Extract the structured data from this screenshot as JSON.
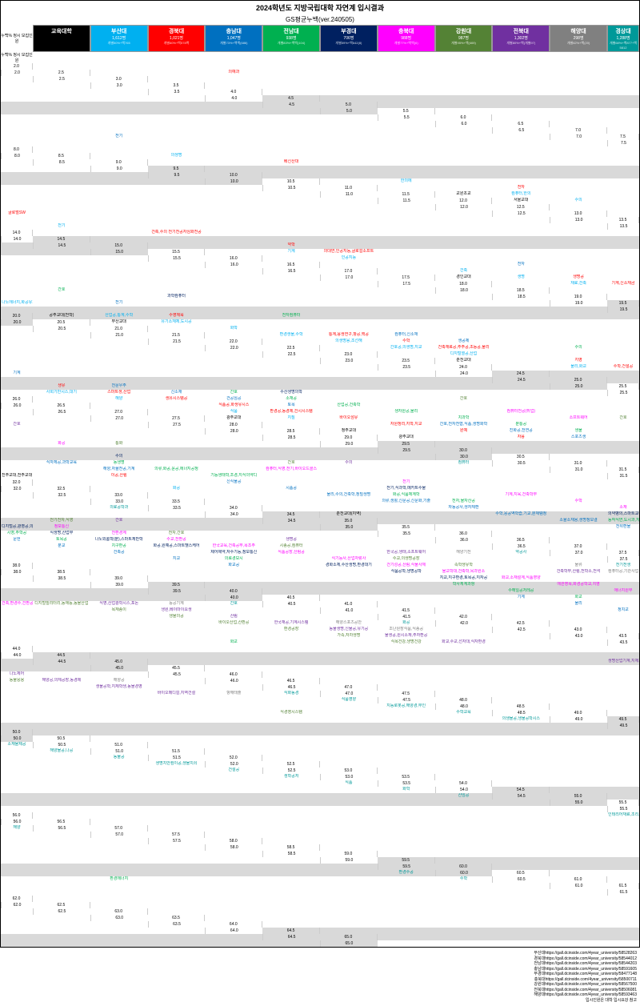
{
  "title": "2024학년도 지방국립대학 자연계 입시결과",
  "subtitle": "GS평균누백(ver.240505)",
  "corner_left": "누백%\n정시\n모집인원",
  "corner_right": "누백%\n정시\n모집인원",
  "columns": [
    {
      "name": "교육대학",
      "count": "",
      "bg": "#000000"
    },
    {
      "name": "부산대",
      "count": "1,612명",
      "link": "개별50%+백765",
      "bg": "#00b0f0"
    },
    {
      "name": "경북대",
      "count": "1,021명",
      "link": "개별60%+백578백",
      "bg": "#ff0000"
    },
    {
      "name": "충남대",
      "count": "1,047명",
      "link": "개별73%+백백(686)",
      "bg": "#0070c0"
    },
    {
      "name": "전남대",
      "count": "938명",
      "link": "개별83%+백백(104)",
      "bg": "#00b050"
    },
    {
      "name": "부경대",
      "count": "706명",
      "link": "개별59%+백642(8)",
      "bg": "#002060"
    },
    {
      "name": "충북대",
      "count": "988명",
      "link": "개별77%+백백(6)",
      "bg": "#ff00ff"
    },
    {
      "name": "강원대",
      "count": "987명",
      "link": "개별95%+백(469)",
      "bg": "#548235"
    },
    {
      "name": "전북대",
      "count": "1,302명",
      "link": "개별80%+백(개별97)",
      "bg": "#7030a0"
    },
    {
      "name": "해양대",
      "count": "298명",
      "link": "개별62%+백(20)",
      "bg": "#808080"
    },
    {
      "name": "경상대",
      "count": "1,288명",
      "link": "개별68%+백877+백5812",
      "bg": "#009999"
    }
  ],
  "row_vals": [
    "2.0",
    "2.5",
    "3.0",
    "3.5",
    "4.0",
    "4.5",
    "5.0",
    "5.5",
    "6.0",
    "6.5",
    "7.0",
    "7.5",
    "8.0",
    "8.5",
    "9.0",
    "9.5",
    "10.0",
    "10.5",
    "11.0",
    "11.5",
    "12.0",
    "12.5",
    "13.0",
    "13.5",
    "14.0",
    "14.5",
    "15.0",
    "15.5",
    "16.0",
    "16.5",
    "17.0",
    "17.5",
    "18.0",
    "18.5",
    "19.0",
    "19.5",
    "20.0",
    "20.5",
    "21.0",
    "21.5",
    "22.0",
    "22.5",
    "23.0",
    "23.5",
    "24.0",
    "24.5",
    "25.0",
    "25.5",
    "26.0",
    "26.5",
    "27.0",
    "27.5",
    "28.0",
    "28.5",
    "29.0",
    "29.5",
    "30.0",
    "30.5",
    "31.0",
    "31.5",
    "32.0",
    "32.5",
    "33.0",
    "33.5",
    "34.0",
    "34.5",
    "35.0",
    "35.5",
    "36.0",
    "36.5",
    "37.0",
    "37.5",
    "38.0",
    "38.5",
    "39.0",
    "39.5",
    "40.0",
    "40.5",
    "41.0",
    "41.5",
    "42.0",
    "42.5",
    "43.0",
    "43.5",
    "44.0",
    "44.5",
    "45.0",
    "45.5",
    "46.0",
    "46.5",
    "47.0",
    "47.5",
    "48.0",
    "48.5",
    "49.0",
    "49.5",
    "50.0",
    "50.5",
    "51.0",
    "51.5",
    "52.0",
    "52.5",
    "53.0",
    "53.5",
    "54.0",
    "54.5",
    "55.0",
    "55.5",
    "56.0",
    "56.5",
    "57.0",
    "57.5",
    "58.0",
    "58.5",
    "59.0",
    "59.5",
    "60.0",
    "60.5",
    "61.0",
    "61.5",
    "62.0",
    "62.5",
    "63.0",
    "63.5",
    "64.0",
    "64.5",
    "65.0"
  ],
  "shaded_ints": [
    "5.0",
    "10.0",
    "15.0",
    "20.0",
    "25.0",
    "30.0",
    "35.0",
    "40.0",
    "45.0",
    "50.0",
    "55.0",
    "60.0",
    "65.0"
  ],
  "shaded_half": [
    "4.5",
    "9.5",
    "14.5",
    "19.5",
    "24.5",
    "29.5",
    "34.5",
    "39.5",
    "44.5",
    "49.5",
    "54.5",
    "59.5",
    "64.5"
  ],
  "cells": {
    "2.5": {
      "2": "의예과"
    },
    "7.0": {
      "3": "전기"
    },
    "8.5": {
      "1": "의생명"
    },
    "9.0": {
      "2": "베신산대"
    },
    "10.5": {
      "1": "한의에"
    },
    "11.0": {
      "2": "전자"
    },
    "11.5": {
      "0": "교원초교",
      "1": "컴퓨터,한의"
    },
    "12.0": {
      "0": "서울교대",
      "1": "수의"
    },
    "12.5": {
      "2": "글로벌SW"
    },
    "13.5": {
      "1": "전기"
    },
    "14.0": {
      "2": "건축,수의\n전기전공자심화전공"
    },
    "15.0": {
      "2": "약학"
    },
    "15.5": {
      "1": "기계",
      "2": "의대연,인공지능,글로컬소프트"
    },
    "16.0": {
      "1": "인공지능"
    },
    "16.5": {
      "3": "전자"
    },
    "17.0": {
      "1": "건축"
    },
    "17.5": {
      "0": "경인교대",
      "1": "생명",
      "2": "생명공"
    },
    "18.0": {
      "1": "재료,건축",
      "2": "기계,신소재금",
      "4": "간호"
    },
    "18.5": {
      "5": "과학컴퓨터"
    },
    "19.0": {
      "1": "나노에너지,화공유기",
      "3": "전기"
    },
    "20.0": {
      "0": "공주교대(전학)",
      "1": "산업공,통계,수학",
      "2": "수영체육",
      "4": "전자컴퓨터"
    },
    "20.5": {
      "0": "부산교대",
      "1": "유기소재체,도시공"
    },
    "21.0": {
      "1": "화학"
    },
    "21.5": {
      "1": "환경생물,수학",
      "2": "통계,융생연구,항공,핵공",
      "3": "컴퓨터,신소재"
    },
    "22.0": {
      "1": "의생명융,조선해",
      "2": "수학",
      "3": "생공제"
    },
    "22.5": {
      "1": "간호공,의생명,지교",
      "2": "건축재료공,주주공,초등공,물리",
      "4": "수의"
    },
    "23.0": {
      "1": "디지털열공,산업"
    },
    "23.5": {
      "0": "춘천교대",
      "2": "지영"
    },
    "24.0": {
      "1": "물리,화교",
      "2": "수학,건설공",
      "3": "기계"
    },
    "25.0": {
      "2": "생유",
      "3": "천문우주"
    },
    "25.5": {
      "1": "사회기반시스,대기",
      "2": "스마트생,산업",
      "3": "신소재",
      "4": "간호",
      "5": "수산생명의학"
    },
    "26.0": {
      "1": "해양",
      "2": "생유시스템공",
      "3": "건공심공",
      "4": "소재공",
      "7": "간호"
    },
    "26.5": {
      "2": "식품공,화생유시스",
      "3": "토목",
      "4": "산업공,건축학"
    },
    "27.0": {
      "1": "식품",
      "2": "환경공,농경제,건시시스템",
      "4": "생자원공,물리",
      "6": "컴퓨터전공(취업)"
    },
    "27.5": {
      "0": "광주교대",
      "1": "지질",
      "2": "바이오섬유",
      "4": "치과학",
      "6": "소프트웨어",
      "7": "간호",
      "8": "간호"
    },
    "28.0": {
      "2": "자원정리,지학,지교",
      "3": "간호,전자전협,식품,생명화학",
      "4": "분통공"
    },
    "28.5": {
      "0": "청주교대",
      "2": "원예",
      "3": "진화공,천연공",
      "4": "생물"
    },
    "29.0": {
      "0": "광주교대",
      "2": "자융",
      "3": "스포츠생",
      "6": "화공",
      "7": "통화"
    },
    "30.0": {
      "5": "수의"
    },
    "30.5": {
      "3": "식자체공,과학교육",
      "4": "농생명",
      "7": "간호",
      "8": "수의",
      "10": "컴퓨터"
    },
    "31.0": {
      "3": "해양,자율전공,기계",
      "4": "의류,화공,윤공,에너지공정",
      "6": "컴퓨터,식영,전기,바이오드콜스"
    },
    "31.5": {
      "0": "진주교대,전주교대",
      "2": "이공,산림",
      "4": "기능생태학,조경,지식의약디"
    },
    "32.0": {
      "3": "신식물공",
      "6": "전기"
    },
    "32.5": {
      "1": "화공",
      "3": "시품공",
      "5": "전기,식과학,메카트수물"
    },
    "33.0": {
      "3": "물리,수의,건축학,정밀생명",
      "4": "화공,식품체계학",
      "6": "기계,지육,건축학부"
    },
    "33.5": {
      "3": "의류,생활,신문공,신문화,기출",
      "4": "전자,물자산공",
      "6": "수학",
      "10": "의료공학과"
    },
    "34.0": {
      "3": "자동공사,생자체환",
      "6": "소재"
    },
    "34.5": {
      "0": "춘천교대(지역)",
      "3": "수학,응공역학습,기교,분체템정",
      "5": "의약병의,스마트교장,노동체장유",
      "7": "전기전자,식영",
      "8": "간호"
    },
    "35.0": {
      "3": "소율소재용,생명정보결",
      "4": "동작식연,도시과,지속유행",
      "5": "디지털공,광영공,의생명,공간정보",
      "6": "정보통신"
    },
    "35.5": {
      "3": "천위환물",
      "4": "시영,주학공",
      "5": "식생명,산업부",
      "6": "천환경계",
      "7": "전자,간호"
    },
    "36.0": {
      "3": "문헌",
      "4": "토목공",
      "5": "나노외롬학(분),스마트체만학",
      "6": "수교,천환공",
      "8": "생명공"
    },
    "36.5": {
      "3": "분교",
      "4": "치구환공",
      "5": "화공,원예공,스마트헬스케어",
      "6": "한국교육,건축공부,목조주",
      "7": "시종공,컴퓨터"
    },
    "37.0": {
      "3": "건축공",
      "5": "제어제약,자수기능,정보통신",
      "6": "식품공장,산림공",
      "8": "한국공,생태,소프트웨어",
      "9": "해양기전",
      "10": "약공사"
    },
    "37.5": {
      "3": "지교",
      "4": "의료경보시",
      "6": "식기능사,산업자랑사",
      "7": "수교,의생명공장"
    },
    "38.0": {
      "3": "화교공",
      "5": "경화소체,수산생명,환경대기",
      "6": "건기성공,산림,식물사체",
      "7": "속학생유학",
      "9": "물류",
      "10": "전기전생"
    },
    "38.5": {
      "5": "식품공학,생명공학",
      "6": "물교학대,건축학,목과원소",
      "8": "건축학부,산림,전학소,전석",
      "9": "컴퓨터공,기관사업"
    },
    "39.0": {
      "5": "지교,지구환경,토목공,지자공",
      "6": "화교,소재설계,식품영양"
    },
    "39.5": {
      "4": "학사체계과항",
      "6": "에관영목,화경공학교,치영"
    },
    "40.0": {
      "4": "수해일공저레공",
      "6": "애너지원부"
    },
    "40.5": {
      "3": "기계",
      "4": "화교",
      "6": "건축,환경수,건환공학",
      "7": "디지털밀리터리,동애능,동물산업",
      "8": "식영,산업광학시스,포논",
      "9": "능공기계",
      "10": "간호"
    },
    "41.0": {
      "3": "물리",
      "7": "목재종이",
      "8": "생원,베이마이요생"
    },
    "41.5": {
      "3": "정치교",
      "7": "생물의공",
      "8": "산림"
    },
    "42.0": {
      "7": "바이오산업,산환공",
      "8": "한국재공,기계시스템",
      "9": "해양스포츠공안",
      "10": "화공"
    },
    "42.5": {
      "7": "환경공장",
      "8": "동물생명,신물공,유기공",
      "9": "조난원장식품,식종공"
    },
    "43.0": {
      "7": "가족,자차생명",
      "8": "물생공,원시소재,주자환공"
    },
    "43.5": {
      "4": "화교",
      "7": "식목건강,생명건강",
      "8": "화교,수교,선자대,식자환경"
    },
    "45.0": {
      "8": "생명산업기계,지체자원"
    },
    "45.5": {
      "8": "나노체어"
    },
    "46.0": {
      "7": "동물응용",
      "8": "해양공,의체공장,농경제",
      "9": "해양공"
    },
    "46.5": {
      "8": "생물공학,지체학생,동물경영"
    },
    "47.0": {
      "8": "바이오메디컬,지역건설",
      "9": "항해태출",
      "10": "식화동경"
    },
    "47.5": {
      "10": "식품영양"
    },
    "48.0": {
      "10": "지능로봇공,해양경,무인"
    },
    "48.5": {
      "7": "식경영시스템",
      "10": "수학교육"
    },
    "49.0": {
      "10": "의생물공,생물공학시스"
    },
    "50.5": {
      "10": "소재물제공"
    },
    "51.0": {
      "10": "해양물공,나공"
    },
    "51.5": {
      "10": "동물공"
    },
    "52.0": {
      "10": "생명치안컴이공,생물치쇠"
    },
    "52.5": {
      "10": "건설공"
    },
    "53.0": {
      "10": "생학공저"
    },
    "53.5": {
      "10": "식품"
    },
    "54.0": {
      "10": "화학"
    },
    "54.5": {
      "10": "산임공"
    },
    "56.0": {
      "10": "인테리어재료,조리,해체"
    },
    "56.5": {
      "10": "해양"
    },
    "60.0": {
      "10": "환경수공"
    },
    "60.5": {
      "4": "환경에너지",
      "10": "수학"
    },
    "65.0": {
      "10": ""
    }
  },
  "footer_links": [
    "부산대https://gall.dcinside.com/4year_university/58528263",
    "경북대https://gall.dcinside.com/4year_university/58544012",
    "전남대https://gall.dcinside.com/4year_university/58544203",
    "충남대https://gall.dcinside.com/4year_university/58591605",
    "부경대https://gall.dcinside.com/4year_university/58477148",
    "충북대https://gall.dcinside.com/4year_university/58500711",
    "강원대https://gall.dcinside.com/4year_university/58567500",
    "전북대https://gall.dcinside.com/4year_university/58506081",
    "해양대https://gall.dcinside.com/4year_university/58593463",
    "입시인원은 대학 입시요강 참고"
  ]
}
